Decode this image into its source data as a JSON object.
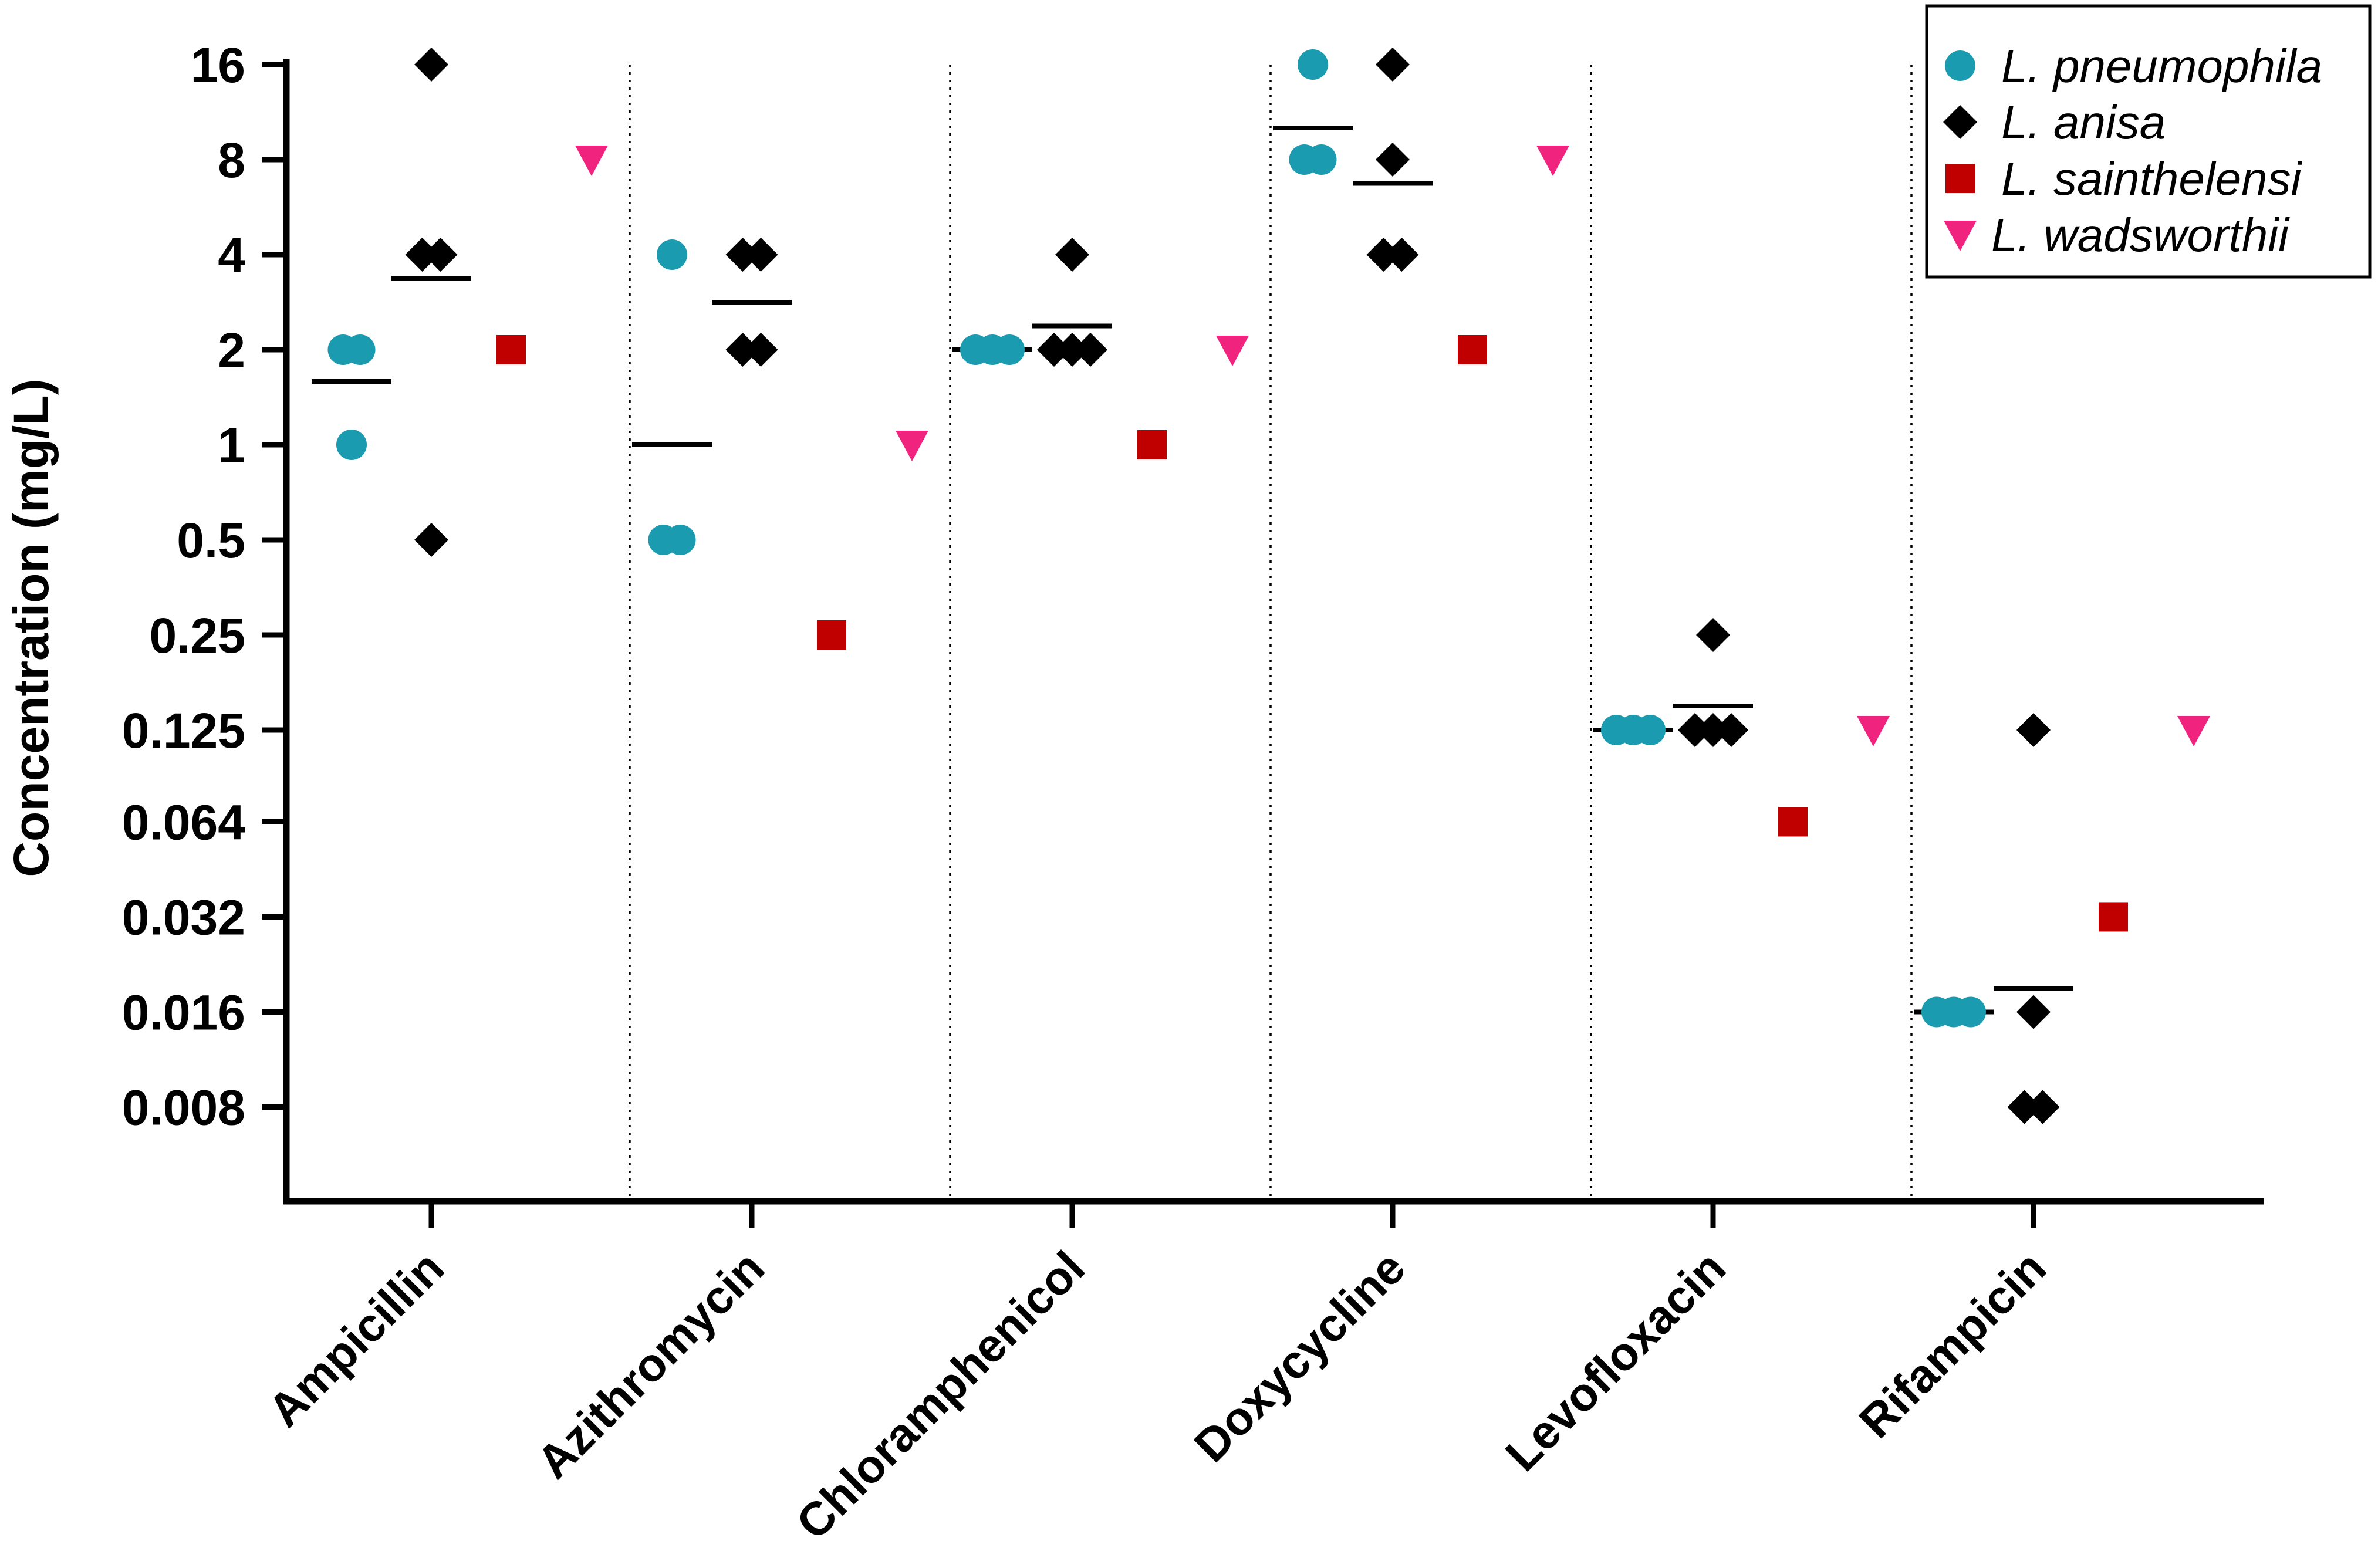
{
  "chart_data": {
    "type": "scatter",
    "ylabel": "Concentration (mg/L)",
    "xlabel": "",
    "yscale": "log2",
    "ylim": [
      0.004,
      16
    ],
    "yticks": [
      16,
      8,
      4,
      2,
      1,
      0.5,
      0.25,
      0.125,
      0.064,
      0.032,
      0.016,
      0.008
    ],
    "ytick_labels": [
      "16",
      "8",
      "4",
      "2",
      "1",
      "0.5",
      "0.25",
      "0.125",
      "0.064",
      "0.032",
      "0.016",
      "0.008"
    ],
    "categories": [
      "Ampicillin",
      "Azithromycin",
      "Chloramphenicol",
      "Doxycycline",
      "Levofloxacin",
      "Rifampicin"
    ],
    "legend_position": "top-right",
    "series": [
      {
        "name": "L. pneumophila",
        "marker": "circle",
        "color": "#1a9bb0",
        "values": [
          [
            2,
            2,
            1
          ],
          [
            4,
            0.5,
            0.5
          ],
          [
            2,
            2,
            2
          ],
          [
            16,
            8,
            8
          ],
          [
            0.125,
            0.125,
            0.125
          ],
          [
            0.016,
            0.016,
            0.016
          ]
        ],
        "means": [
          1.587,
          1,
          2,
          10.08,
          0.125,
          0.016
        ]
      },
      {
        "name": "L. anisa",
        "marker": "diamond",
        "color": "#000000",
        "values": [
          [
            16,
            4,
            4,
            0.5
          ],
          [
            4,
            4,
            2,
            2
          ],
          [
            4,
            2,
            2,
            2
          ],
          [
            16,
            8,
            4,
            4
          ],
          [
            0.25,
            0.125,
            0.125,
            0.125
          ],
          [
            0.125,
            0.016,
            0.008,
            0.008
          ]
        ],
        "means": [
          3.364,
          2.828,
          2.378,
          6.727,
          0.149,
          0.019
        ]
      },
      {
        "name": "L. sainthelensi",
        "marker": "square",
        "color": "#c00000",
        "values": [
          [
            2
          ],
          [
            0.25
          ],
          [
            1
          ],
          [
            2
          ],
          [
            0.064
          ],
          [
            0.032
          ]
        ]
      },
      {
        "name": "L. wadsworthii",
        "marker": "triangle-down",
        "color": "#f0237f",
        "values": [
          [
            8
          ],
          [
            1
          ],
          [
            2
          ],
          [
            8
          ],
          [
            0.125
          ],
          [
            0.125
          ]
        ]
      }
    ]
  }
}
